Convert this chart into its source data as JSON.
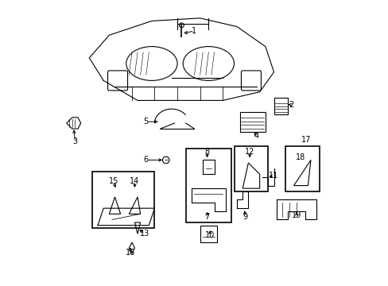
{
  "title": "",
  "bg_color": "#ffffff",
  "line_color": "#000000",
  "label_color": "#000000",
  "figsize": [
    4.89,
    3.6
  ],
  "dpi": 100,
  "label_positions": {
    "1": [
      0.5,
      0.895,
      0.455,
      0.885
    ],
    "2": [
      0.84,
      0.635,
      0.83,
      0.635
    ],
    "3": [
      0.08,
      0.505,
      0.075,
      0.555
    ],
    "4": [
      0.72,
      0.525,
      0.705,
      0.545
    ],
    "5": [
      0.33,
      0.575,
      0.38,
      0.575
    ],
    "6": [
      0.33,
      0.44,
      0.395,
      0.44
    ],
    "7": [
      0.545,
      0.24,
      0.545,
      0.265
    ],
    "8": [
      0.545,
      0.47,
      0.545,
      0.44
    ],
    "9": [
      0.68,
      0.24,
      0.675,
      0.27
    ],
    "10": [
      0.555,
      0.175,
      0.555,
      0.2
    ],
    "11": [
      0.78,
      0.385,
      0.755,
      0.38
    ],
    "12": [
      0.695,
      0.47,
      0.695,
      0.44
    ],
    "13": [
      0.325,
      0.18,
      0.3,
      0.2
    ],
    "14": [
      0.29,
      0.365,
      0.29,
      0.335
    ],
    "15": [
      0.215,
      0.365,
      0.225,
      0.335
    ],
    "16": [
      0.275,
      0.115,
      0.275,
      0.14
    ],
    "17": [
      0.895,
      0.51,
      0.895,
      0.51
    ],
    "18": [
      0.875,
      0.45,
      0.875,
      0.45
    ],
    "19": [
      0.86,
      0.245,
      0.86,
      0.265
    ]
  }
}
